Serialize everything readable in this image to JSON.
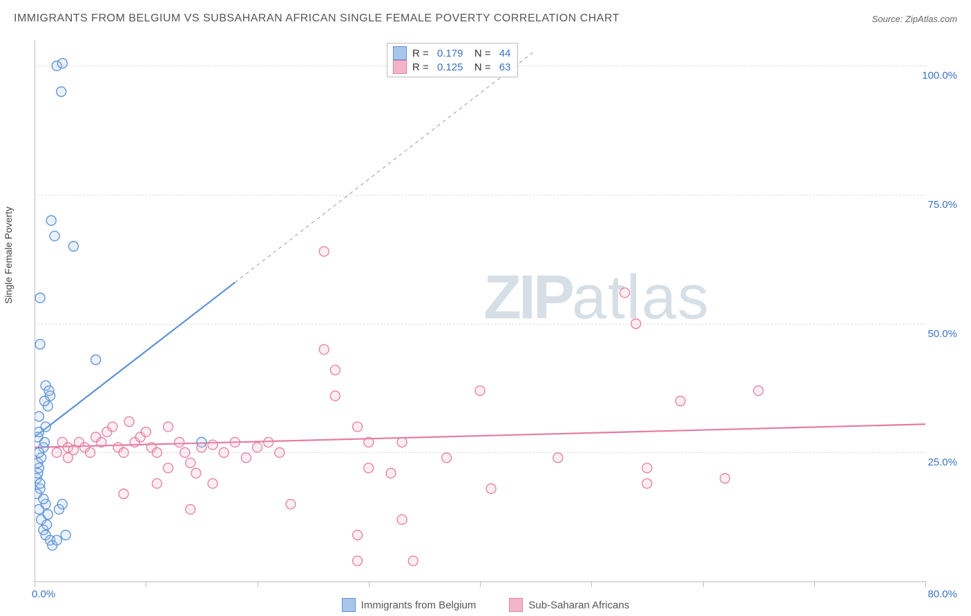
{
  "title": "IMMIGRANTS FROM BELGIUM VS SUBSAHARAN AFRICAN SINGLE FEMALE POVERTY CORRELATION CHART",
  "source": "Source: ZipAtlas.com",
  "y_axis_label": "Single Female Poverty",
  "watermark_a": "ZIP",
  "watermark_b": "atlas",
  "chart": {
    "type": "scatter",
    "background_color": "#ffffff",
    "grid_color": "#dddddd",
    "axis_color": "#bbbbbb",
    "text_color": "#555555",
    "tick_label_color": "#3b72c4",
    "title_fontsize": 16,
    "label_fontsize": 14,
    "tick_fontsize": 15,
    "xlim": [
      0,
      80
    ],
    "ylim": [
      0,
      105
    ],
    "y_ticks": [
      25,
      50,
      75,
      100
    ],
    "y_tick_labels": [
      "25.0%",
      "50.0%",
      "75.0%",
      "100.0%"
    ],
    "x_ticks": [
      0,
      10,
      20,
      30,
      40,
      50,
      60,
      70,
      80
    ],
    "x_tick_labels_shown": {
      "0": "0.0%",
      "80": "80.0%"
    },
    "marker_radius": 7,
    "marker_stroke_width": 1.3,
    "marker_fill_opacity": 0.25,
    "trend_line_width": 2.2,
    "trend_dash_width": 1,
    "series": [
      {
        "key": "belgium",
        "label": "Immigrants from Belgium",
        "stroke": "#5b8fd6",
        "fill": "#a9c6ea",
        "r_value": "0.179",
        "n_value": "44",
        "trend": {
          "x1": 0,
          "y1": 28,
          "x2": 18,
          "y2": 58,
          "dash_x2": 45,
          "dash_y2": 103
        },
        "points": [
          [
            0.2,
            20
          ],
          [
            0.3,
            21
          ],
          [
            0.4,
            22
          ],
          [
            0.5,
            18
          ],
          [
            0.3,
            23
          ],
          [
            0.6,
            24
          ],
          [
            0.8,
            26
          ],
          [
            0.9,
            27
          ],
          [
            0.4,
            25
          ],
          [
            0.5,
            19
          ],
          [
            0.2,
            17
          ],
          [
            0.3,
            28
          ],
          [
            0.4,
            29
          ],
          [
            1.0,
            30
          ],
          [
            1.2,
            34
          ],
          [
            1.4,
            36
          ],
          [
            1.0,
            38
          ],
          [
            0.9,
            35
          ],
          [
            1.3,
            37
          ],
          [
            0.4,
            14
          ],
          [
            0.6,
            12
          ],
          [
            0.8,
            10
          ],
          [
            1.0,
            9
          ],
          [
            1.4,
            8
          ],
          [
            1.6,
            7
          ],
          [
            1.2,
            13
          ],
          [
            1.1,
            11
          ],
          [
            1.0,
            15
          ],
          [
            0.8,
            16
          ],
          [
            2.2,
            14
          ],
          [
            2.5,
            15
          ],
          [
            2.0,
            8
          ],
          [
            2.8,
            9
          ],
          [
            5.5,
            43
          ],
          [
            3.5,
            65
          ],
          [
            1.8,
            67
          ],
          [
            1.5,
            70
          ],
          [
            0.5,
            46
          ],
          [
            0.5,
            55
          ],
          [
            0.4,
            32
          ],
          [
            2.0,
            100
          ],
          [
            2.5,
            100.5
          ],
          [
            2.4,
            95
          ],
          [
            15,
            27
          ]
        ]
      },
      {
        "key": "subsaharan",
        "label": "Sub-Saharan Africans",
        "stroke": "#e37da0",
        "fill": "#f3b6c9",
        "r_value": "0.125",
        "n_value": "63",
        "trend": {
          "x1": 0,
          "y1": 26,
          "x2": 80,
          "y2": 30.5
        },
        "points": [
          [
            2,
            25
          ],
          [
            2.5,
            27
          ],
          [
            3,
            26
          ],
          [
            3.5,
            25.5
          ],
          [
            4,
            27
          ],
          [
            4.5,
            26
          ],
          [
            5,
            25
          ],
          [
            5.5,
            28
          ],
          [
            6,
            27
          ],
          [
            6.5,
            29
          ],
          [
            7,
            30
          ],
          [
            7.5,
            26
          ],
          [
            8,
            25
          ],
          [
            8.5,
            31
          ],
          [
            9,
            27
          ],
          [
            9.5,
            28
          ],
          [
            10,
            29
          ],
          [
            10.5,
            26
          ],
          [
            11,
            25
          ],
          [
            11,
            19
          ],
          [
            12,
            22
          ],
          [
            12,
            30
          ],
          [
            13,
            27
          ],
          [
            13.5,
            25
          ],
          [
            14,
            23
          ],
          [
            14.5,
            21
          ],
          [
            15,
            26
          ],
          [
            16,
            26.5
          ],
          [
            16,
            19
          ],
          [
            17,
            25
          ],
          [
            18,
            27
          ],
          [
            19,
            24
          ],
          [
            20,
            26
          ],
          [
            21,
            27
          ],
          [
            22,
            25
          ],
          [
            23,
            15
          ],
          [
            14,
            14
          ],
          [
            26,
            45
          ],
          [
            26,
            64
          ],
          [
            27,
            41
          ],
          [
            27,
            36
          ],
          [
            29,
            30
          ],
          [
            30,
            27
          ],
          [
            30,
            22
          ],
          [
            29,
            9
          ],
          [
            29,
            4
          ],
          [
            32,
            21
          ],
          [
            33,
            27
          ],
          [
            33,
            12
          ],
          [
            34,
            4
          ],
          [
            40,
            37
          ],
          [
            41,
            18
          ],
          [
            53,
            56
          ],
          [
            54,
            50
          ],
          [
            55,
            22
          ],
          [
            55,
            19
          ],
          [
            65,
            37
          ],
          [
            62,
            20
          ],
          [
            58,
            35
          ],
          [
            47,
            24
          ],
          [
            37,
            24
          ],
          [
            8,
            17
          ],
          [
            3,
            24
          ]
        ]
      }
    ],
    "legend_bottom": [
      {
        "swatch_fill": "#a9c6ea",
        "swatch_stroke": "#5b8fd6",
        "label_key": "chart.series.0.label"
      },
      {
        "swatch_fill": "#f3b6c9",
        "swatch_stroke": "#e37da0",
        "label_key": "chart.series.1.label"
      }
    ]
  }
}
